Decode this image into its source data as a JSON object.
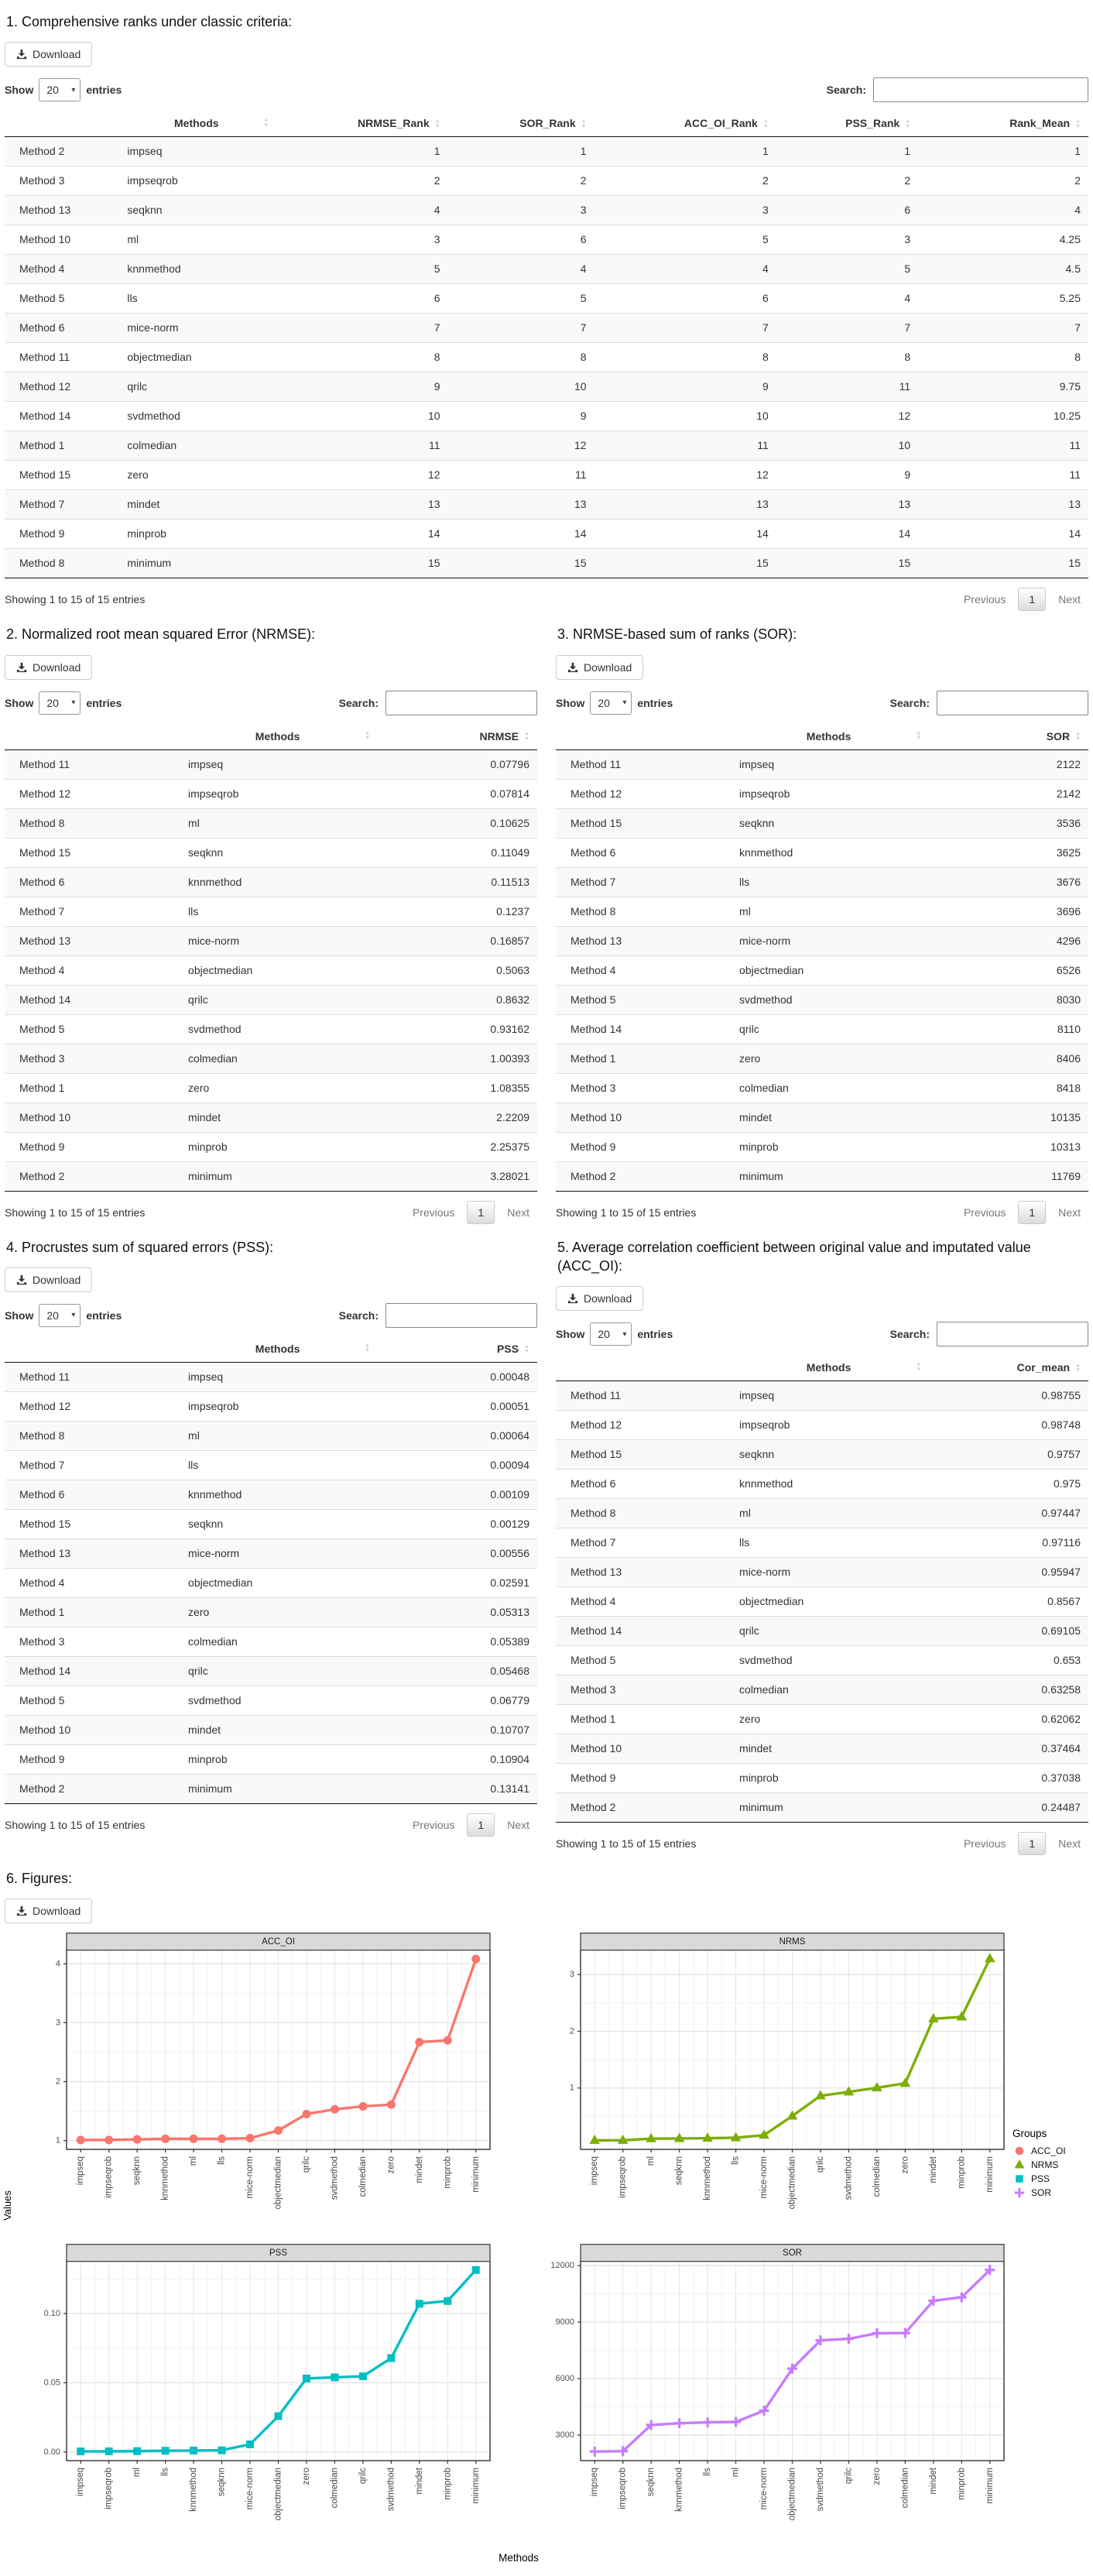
{
  "common": {
    "download_label": "Download",
    "show_label": "Show",
    "page_length": "20",
    "caret": "▾",
    "entries_label": "entries",
    "search_label": "Search:",
    "search_value": "",
    "sort_asc": "▲",
    "sort_desc": "▼",
    "info_text": "Showing 1 to 15 of 15 entries",
    "previous_label": "Previous",
    "page_number": "1",
    "next_label": "Next"
  },
  "tables": {
    "ranks": {
      "title": "1. Comprehensive ranks under classic criteria:",
      "headers": [
        "",
        "Methods",
        "NRMSE_Rank",
        "SOR_Rank",
        "ACC_OI_Rank",
        "PSS_Rank",
        "Rank_Mean"
      ],
      "rows": [
        [
          "Method 2",
          "impseq",
          "1",
          "1",
          "1",
          "1",
          "1"
        ],
        [
          "Method 3",
          "impseqrob",
          "2",
          "2",
          "2",
          "2",
          "2"
        ],
        [
          "Method 13",
          "seqknn",
          "4",
          "3",
          "3",
          "6",
          "4"
        ],
        [
          "Method 10",
          "ml",
          "3",
          "6",
          "5",
          "3",
          "4.25"
        ],
        [
          "Method 4",
          "knnmethod",
          "5",
          "4",
          "4",
          "5",
          "4.5"
        ],
        [
          "Method 5",
          "lls",
          "6",
          "5",
          "6",
          "4",
          "5.25"
        ],
        [
          "Method 6",
          "mice-norm",
          "7",
          "7",
          "7",
          "7",
          "7"
        ],
        [
          "Method 11",
          "objectmedian",
          "8",
          "8",
          "8",
          "8",
          "8"
        ],
        [
          "Method 12",
          "qrilc",
          "9",
          "10",
          "9",
          "11",
          "9.75"
        ],
        [
          "Method 14",
          "svdmethod",
          "10",
          "9",
          "10",
          "12",
          "10.25"
        ],
        [
          "Method 1",
          "colmedian",
          "11",
          "12",
          "11",
          "10",
          "11"
        ],
        [
          "Method 15",
          "zero",
          "12",
          "11",
          "12",
          "9",
          "11"
        ],
        [
          "Method 7",
          "mindet",
          "13",
          "13",
          "13",
          "13",
          "13"
        ],
        [
          "Method 9",
          "minprob",
          "14",
          "14",
          "14",
          "14",
          "14"
        ],
        [
          "Method 8",
          "minimum",
          "15",
          "15",
          "15",
          "15",
          "15"
        ]
      ]
    },
    "nrmse": {
      "title": "2. Normalized root mean squared Error (NRMSE):",
      "headers": [
        "",
        "Methods",
        "NRMSE"
      ],
      "rows": [
        [
          "Method 11",
          "impseq",
          "0.07796"
        ],
        [
          "Method 12",
          "impseqrob",
          "0.07814"
        ],
        [
          "Method 8",
          "ml",
          "0.10625"
        ],
        [
          "Method 15",
          "seqknn",
          "0.11049"
        ],
        [
          "Method 6",
          "knnmethod",
          "0.11513"
        ],
        [
          "Method 7",
          "lls",
          "0.1237"
        ],
        [
          "Method 13",
          "mice-norm",
          "0.16857"
        ],
        [
          "Method 4",
          "objectmedian",
          "0.5063"
        ],
        [
          "Method 14",
          "qrilc",
          "0.8632"
        ],
        [
          "Method 5",
          "svdmethod",
          "0.93162"
        ],
        [
          "Method 3",
          "colmedian",
          "1.00393"
        ],
        [
          "Method 1",
          "zero",
          "1.08355"
        ],
        [
          "Method 10",
          "mindet",
          "2.2209"
        ],
        [
          "Method 9",
          "minprob",
          "2.25375"
        ],
        [
          "Method 2",
          "minimum",
          "3.28021"
        ]
      ]
    },
    "sor": {
      "title": "3. NRMSE-based sum of ranks (SOR):",
      "headers": [
        "",
        "Methods",
        "SOR"
      ],
      "rows": [
        [
          "Method 11",
          "impseq",
          "2122"
        ],
        [
          "Method 12",
          "impseqrob",
          "2142"
        ],
        [
          "Method 15",
          "seqknn",
          "3536"
        ],
        [
          "Method 6",
          "knnmethod",
          "3625"
        ],
        [
          "Method 7",
          "lls",
          "3676"
        ],
        [
          "Method 8",
          "ml",
          "3696"
        ],
        [
          "Method 13",
          "mice-norm",
          "4296"
        ],
        [
          "Method 4",
          "objectmedian",
          "6526"
        ],
        [
          "Method 5",
          "svdmethod",
          "8030"
        ],
        [
          "Method 14",
          "qrilc",
          "8110"
        ],
        [
          "Method 1",
          "zero",
          "8406"
        ],
        [
          "Method 3",
          "colmedian",
          "8418"
        ],
        [
          "Method 10",
          "mindet",
          "10135"
        ],
        [
          "Method 9",
          "minprob",
          "10313"
        ],
        [
          "Method 2",
          "minimum",
          "11769"
        ]
      ]
    },
    "pss": {
      "title": "4. Procrustes sum of squared errors (PSS):",
      "headers": [
        "",
        "Methods",
        "PSS"
      ],
      "rows": [
        [
          "Method 11",
          "impseq",
          "0.00048"
        ],
        [
          "Method 12",
          "impseqrob",
          "0.00051"
        ],
        [
          "Method 8",
          "ml",
          "0.00064"
        ],
        [
          "Method 7",
          "lls",
          "0.00094"
        ],
        [
          "Method 6",
          "knnmethod",
          "0.00109"
        ],
        [
          "Method 15",
          "seqknn",
          "0.00129"
        ],
        [
          "Method 13",
          "mice-norm",
          "0.00556"
        ],
        [
          "Method 4",
          "objectmedian",
          "0.02591"
        ],
        [
          "Method 1",
          "zero",
          "0.05313"
        ],
        [
          "Method 3",
          "colmedian",
          "0.05389"
        ],
        [
          "Method 14",
          "qrilc",
          "0.05468"
        ],
        [
          "Method 5",
          "svdmethod",
          "0.06779"
        ],
        [
          "Method 10",
          "mindet",
          "0.10707"
        ],
        [
          "Method 9",
          "minprob",
          "0.10904"
        ],
        [
          "Method 2",
          "minimum",
          "0.13141"
        ]
      ]
    },
    "accoi": {
      "title": "5. Average correlation coefficient between original value and imputated value (ACC_OI):",
      "headers": [
        "",
        "Methods",
        "Cor_mean"
      ],
      "rows": [
        [
          "Method 11",
          "impseq",
          "0.98755"
        ],
        [
          "Method 12",
          "impseqrob",
          "0.98748"
        ],
        [
          "Method 15",
          "seqknn",
          "0.9757"
        ],
        [
          "Method 6",
          "knnmethod",
          "0.975"
        ],
        [
          "Method 8",
          "ml",
          "0.97447"
        ],
        [
          "Method 7",
          "lls",
          "0.97116"
        ],
        [
          "Method 13",
          "mice-norm",
          "0.95947"
        ],
        [
          "Method 4",
          "objectmedian",
          "0.8567"
        ],
        [
          "Method 14",
          "qrilc",
          "0.69105"
        ],
        [
          "Method 5",
          "svdmethod",
          "0.653"
        ],
        [
          "Method 3",
          "colmedian",
          "0.63258"
        ],
        [
          "Method 1",
          "zero",
          "0.62062"
        ],
        [
          "Method 10",
          "mindet",
          "0.37464"
        ],
        [
          "Method 9",
          "minprob",
          "0.37038"
        ],
        [
          "Method 2",
          "minimum",
          "0.24487"
        ]
      ]
    }
  },
  "figures": {
    "title": "6. Figures:",
    "xlabel": "Methods",
    "ylabel": "Values",
    "legend": {
      "title": "Groups",
      "items": [
        {
          "label": "ACC_OI",
          "color": "#F8766D",
          "marker": "circle"
        },
        {
          "label": "NRMS",
          "color": "#7CAE00",
          "marker": "triangle"
        },
        {
          "label": "PSS",
          "color": "#00BFC4",
          "marker": "square"
        },
        {
          "label": "SOR",
          "color": "#C77CFF",
          "marker": "plus"
        }
      ]
    }
  },
  "chart_data": [
    {
      "type": "line",
      "title": "ACC_OI",
      "color": "#F8766D",
      "marker": "circle",
      "categories": [
        "impseq",
        "impseqrob",
        "seqknn",
        "knnmethod",
        "ml",
        "lls",
        "mice-norm",
        "objectmedian",
        "qrilc",
        "svdmethod",
        "colmedian",
        "zero",
        "mindet",
        "minprob",
        "minimum"
      ],
      "values": [
        1.01,
        1.01,
        1.02,
        1.03,
        1.03,
        1.03,
        1.04,
        1.17,
        1.45,
        1.53,
        1.58,
        1.61,
        2.67,
        2.7,
        4.08
      ],
      "ylim": [
        0.85,
        4.24
      ],
      "yticks": [
        1,
        2,
        3,
        4
      ],
      "ytick_labels": [
        "1",
        "2",
        "3",
        "4"
      ],
      "yminor": [
        1.5,
        2.5,
        3.5
      ]
    },
    {
      "type": "line",
      "title": "NRMS",
      "color": "#7CAE00",
      "marker": "triangle",
      "categories": [
        "impseq",
        "impseqrob",
        "ml",
        "seqknn",
        "knnmethod",
        "lls",
        "mice-norm",
        "objectmedian",
        "qrilc",
        "svdmethod",
        "colmedian",
        "zero",
        "mindet",
        "minprob",
        "minimum"
      ],
      "values": [
        0.07796,
        0.07814,
        0.10625,
        0.11049,
        0.11513,
        0.1237,
        0.16857,
        0.5063,
        0.8632,
        0.93162,
        1.00393,
        1.08355,
        2.2209,
        2.25375,
        3.28021
      ],
      "ylim": [
        -0.082,
        3.44
      ],
      "yticks": [
        1,
        2,
        3
      ],
      "ytick_labels": [
        "1",
        "2",
        "3"
      ],
      "yminor": [
        0.5,
        1.5,
        2.5
      ]
    },
    {
      "type": "line",
      "title": "PSS",
      "color": "#00BFC4",
      "marker": "square",
      "categories": [
        "impseq",
        "impseqrob",
        "ml",
        "lls",
        "knnmethod",
        "seqknn",
        "mice-norm",
        "objectmedian",
        "zero",
        "colmedian",
        "qrilc",
        "svdmethod",
        "mindet",
        "minprob",
        "minimum"
      ],
      "values": [
        0.00048,
        0.00051,
        0.00064,
        0.00094,
        0.00109,
        0.00129,
        0.00556,
        0.02591,
        0.05313,
        0.05389,
        0.05468,
        0.06779,
        0.10707,
        0.10904,
        0.13141
      ],
      "ylim": [
        -0.0062,
        0.138
      ],
      "yticks": [
        0,
        0.05,
        0.1
      ],
      "ytick_labels": [
        "0.00",
        "0.05",
        "0.10"
      ],
      "yminor": [
        0.025,
        0.075,
        0.125
      ]
    },
    {
      "type": "line",
      "title": "SOR",
      "color": "#C77CFF",
      "marker": "plus",
      "categories": [
        "impseq",
        "impseqrob",
        "seqknn",
        "knnmethod",
        "lls",
        "ml",
        "mice-norm",
        "objectmedian",
        "svdmethod",
        "qrilc",
        "zero",
        "colmedian",
        "mindet",
        "minprob",
        "minimum"
      ],
      "values": [
        2122,
        2142,
        3536,
        3625,
        3676,
        3696,
        4296,
        6526,
        8030,
        8110,
        8406,
        8418,
        10135,
        10313,
        11769
      ],
      "ylim": [
        1640,
        12250
      ],
      "yticks": [
        3000,
        6000,
        9000,
        12000
      ],
      "ytick_labels": [
        "3000",
        "6000",
        "9000",
        "12000"
      ],
      "yminor": [
        4500,
        7500,
        10500
      ]
    }
  ]
}
